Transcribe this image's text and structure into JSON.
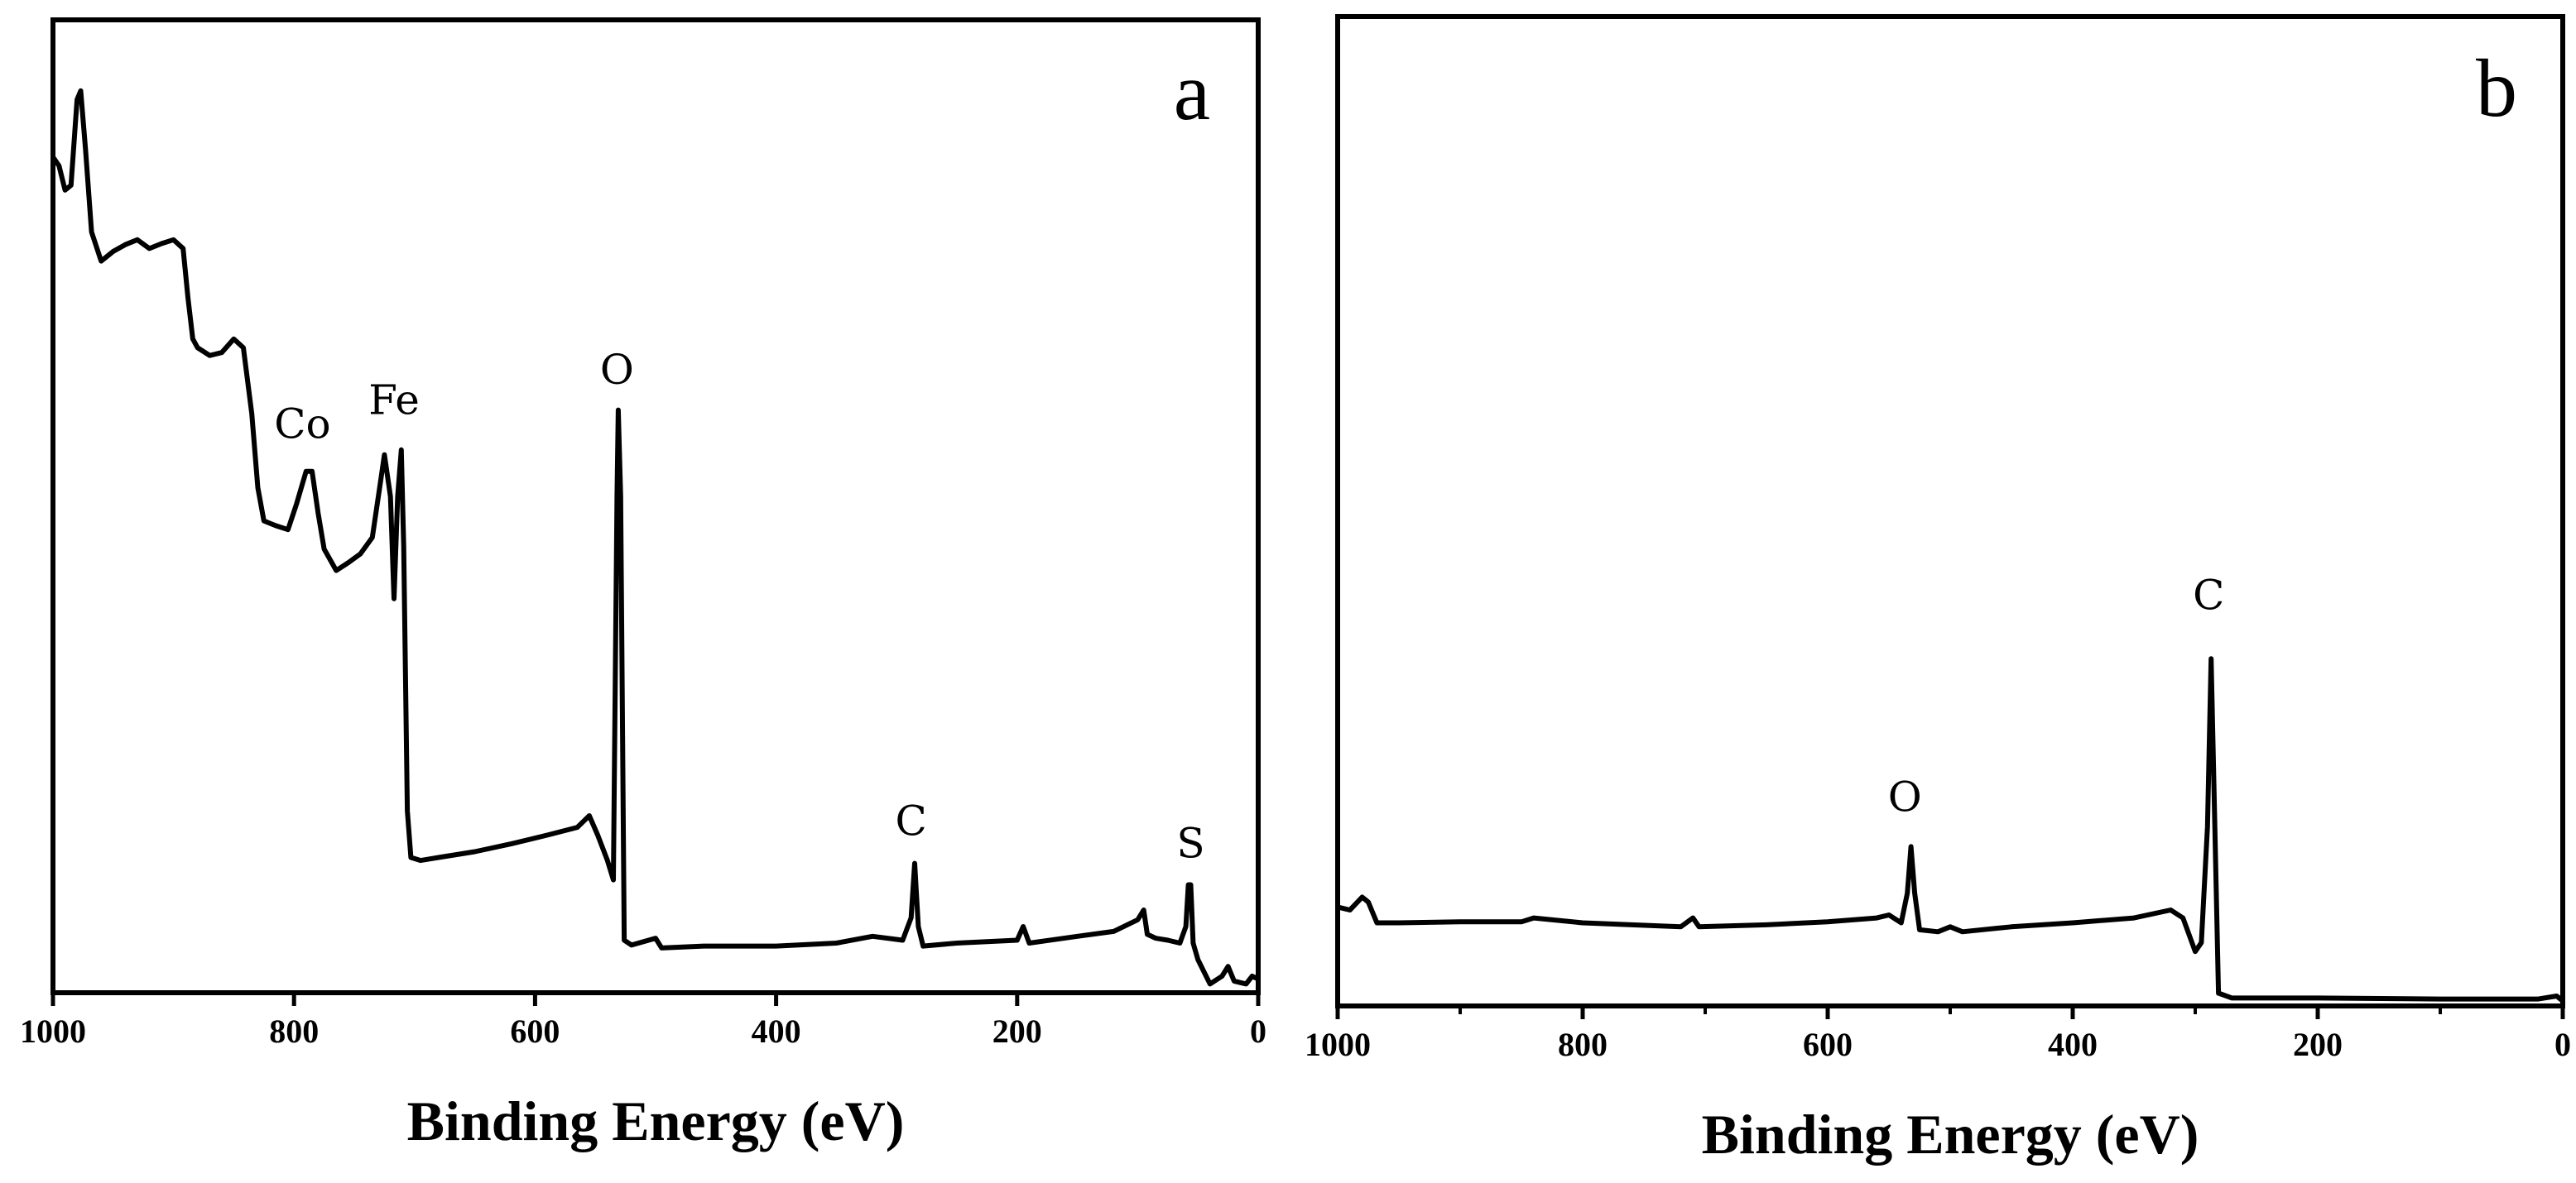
{
  "chart_data": [
    {
      "type": "line",
      "panel_label": "a",
      "xlabel": "Binding Energy (eV)",
      "color": "#000000",
      "xlim": [
        1000,
        0
      ],
      "ylim": [
        0,
        100
      ],
      "xticks": [
        1000,
        800,
        600,
        400,
        200,
        0
      ],
      "x": [
        1000,
        995,
        990,
        985,
        980,
        977,
        973,
        968,
        960,
        950,
        940,
        930,
        920,
        910,
        900,
        892,
        888,
        884,
        880,
        870,
        860,
        850,
        842,
        835,
        830,
        825,
        815,
        805,
        798,
        790,
        785,
        780,
        775,
        765,
        755,
        745,
        735,
        728,
        725,
        720,
        717,
        714,
        711,
        709,
        706,
        703,
        695,
        680,
        650,
        620,
        590,
        565,
        555,
        548,
        540,
        535,
        532,
        531,
        529,
        526,
        520,
        500,
        495,
        460,
        400,
        350,
        320,
        295,
        288,
        285,
        282,
        278,
        250,
        200,
        195,
        190,
        150,
        120,
        100,
        95,
        92,
        85,
        75,
        65,
        60,
        58,
        56,
        54,
        50,
        40,
        30,
        25,
        20,
        10,
        5,
        0
      ],
      "values": [
        85.9,
        85.0,
        82.5,
        83.0,
        91.8,
        92.7,
        86.7,
        78.2,
        75.2,
        76.2,
        76.9,
        77.4,
        76.5,
        77.0,
        77.4,
        76.5,
        71.4,
        67.2,
        66.3,
        65.5,
        65.8,
        67.2,
        66.3,
        59.5,
        51.9,
        48.5,
        48.0,
        47.6,
        50.2,
        53.6,
        53.6,
        49.3,
        45.6,
        43.4,
        44.2,
        45.1,
        46.8,
        52.7,
        55.3,
        51.0,
        40.5,
        51.0,
        55.8,
        45.9,
        18.7,
        13.9,
        13.6,
        13.9,
        14.5,
        15.3,
        16.2,
        17.0,
        18.2,
        16.2,
        13.6,
        11.6,
        51.0,
        59.9,
        51.0,
        5.4,
        4.9,
        5.6,
        4.6,
        4.8,
        4.8,
        5.1,
        5.8,
        5.4,
        7.7,
        13.3,
        6.8,
        4.8,
        5.1,
        5.4,
        6.8,
        5.1,
        5.8,
        6.3,
        7.5,
        8.5,
        6.0,
        5.6,
        5.4,
        5.1,
        6.8,
        11.1,
        11.1,
        5.1,
        3.4,
        0.9,
        1.7,
        2.7,
        1.2,
        0.9,
        1.7,
        1.4
      ],
      "annotations": [
        {
          "text": "Co",
          "x": 793,
          "y": 57
        },
        {
          "text": "Fe",
          "x": 717,
          "y": 59.5
        },
        {
          "text": "O",
          "x": 532,
          "y": 62.6
        },
        {
          "text": "C",
          "x": 288,
          "y": 16.2
        },
        {
          "text": "S",
          "x": 56,
          "y": 13.9
        }
      ]
    },
    {
      "type": "line",
      "panel_label": "b",
      "xlabel": "Binding Energy (eV)",
      "color": "#000000",
      "xlim": [
        1000,
        0
      ],
      "ylim": [
        0,
        100
      ],
      "xticks": [
        1000,
        800,
        600,
        400,
        200,
        0
      ],
      "xminorticks": [
        900,
        700,
        500,
        300,
        100
      ],
      "x": [
        1000,
        990,
        980,
        975,
        968,
        950,
        900,
        850,
        840,
        800,
        720,
        710,
        705,
        650,
        600,
        560,
        550,
        540,
        535,
        532,
        529,
        525,
        510,
        500,
        490,
        450,
        400,
        350,
        320,
        310,
        300,
        295,
        290,
        287,
        284,
        281,
        270,
        200,
        100,
        50,
        20,
        5,
        0
      ],
      "values": [
        10.0,
        9.7,
        11.0,
        10.5,
        8.4,
        8.4,
        8.5,
        8.5,
        8.9,
        8.4,
        8.0,
        8.9,
        8.0,
        8.2,
        8.5,
        8.9,
        9.2,
        8.4,
        11.4,
        16.1,
        11.4,
        7.7,
        7.5,
        8.0,
        7.5,
        8.0,
        8.4,
        8.9,
        9.7,
        8.9,
        5.5,
        6.4,
        18.1,
        35.1,
        18.1,
        1.3,
        0.8,
        0.8,
        0.7,
        0.7,
        0.7,
        1.0,
        0.5
      ],
      "annotations": [
        {
          "text": "O",
          "x": 537,
          "y": 19.7
        },
        {
          "text": "C",
          "x": 289,
          "y": 40.1
        }
      ]
    }
  ]
}
